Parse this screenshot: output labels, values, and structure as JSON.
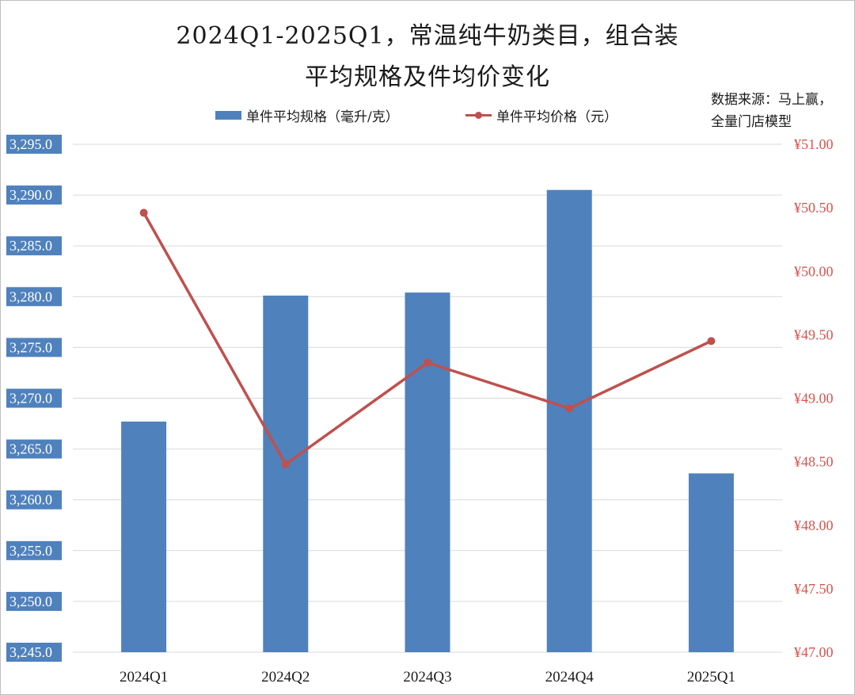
{
  "title_line1": "2024Q1-2025Q1，常温纯牛奶类目，组合装",
  "title_line2": "平均规格及件均价变化",
  "source_line1": "数据来源：马上赢，",
  "source_line2": "全量门店模型",
  "colors": {
    "bar": "#4f81bd",
    "line": "#c0504d",
    "right_axis_text": "#d9534f",
    "left_label_bg": "#4f81bd",
    "grid": "#d9d9d9"
  },
  "chart_data": {
    "type": "bar",
    "categories": [
      "2024Q1",
      "2024Q2",
      "2024Q3",
      "2024Q4",
      "2025Q1"
    ],
    "series": [
      {
        "name": "单件平均规格（毫升/克）",
        "type": "bar",
        "axis": "left",
        "values": [
          3267.7,
          3280.1,
          3280.4,
          3290.5,
          3262.6
        ]
      },
      {
        "name": "单件平均价格（元）",
        "type": "line",
        "axis": "right",
        "values": [
          50.46,
          48.48,
          49.28,
          48.92,
          49.45
        ]
      }
    ],
    "y_left": {
      "min": 3245,
      "max": 3295,
      "step": 5,
      "ticks": [
        "3,245.0",
        "3,250.0",
        "3,255.0",
        "3,260.0",
        "3,265.0",
        "3,270.0",
        "3,275.0",
        "3,280.0",
        "3,285.0",
        "3,290.0",
        "3,295.0"
      ]
    },
    "y_right": {
      "min": 47,
      "max": 51,
      "step": 0.5,
      "ticks": [
        "¥47.00",
        "¥47.50",
        "¥48.00",
        "¥48.50",
        "¥49.00",
        "¥49.50",
        "¥50.00",
        "¥50.50",
        "¥51.00"
      ]
    },
    "grid": true,
    "legend_position": "top"
  }
}
